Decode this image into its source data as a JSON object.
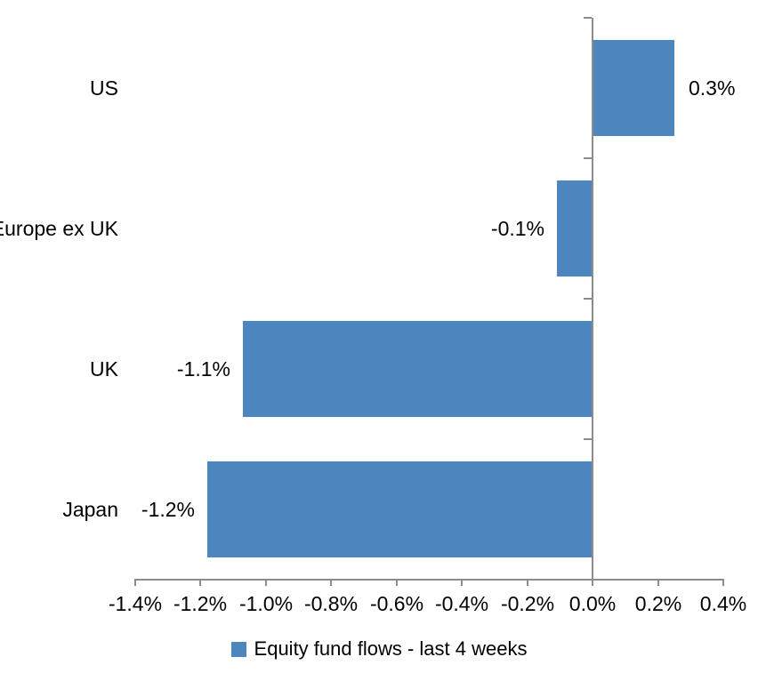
{
  "page": {
    "background": "#FFFFFF"
  },
  "chart_data": {
    "type": "bar",
    "orientation": "horizontal",
    "title": "",
    "xlabel": "",
    "ylabel": "",
    "categories": [
      "US",
      "Europe ex UK",
      "UK",
      "Japan"
    ],
    "values": [
      0.3,
      -0.1,
      -1.1,
      -1.2
    ],
    "data_labels": [
      "0.3%",
      "-0.1%",
      "-1.1%",
      "-1.2%"
    ],
    "plotted_values": [
      0.25,
      -0.11,
      -1.07,
      -1.18
    ],
    "xlim": [
      -1.4,
      0.4
    ],
    "x_tick_step": 0.2,
    "x_tick_labels": [
      "-1.4%",
      "-1.2%",
      "-1.0%",
      "-0.8%",
      "-0.6%",
      "-0.4%",
      "-0.2%",
      "0.0%",
      "0.2%",
      "0.4%"
    ],
    "grid": false,
    "legend": {
      "position": "bottom",
      "label": "Equity fund flows - last 4 weeks"
    },
    "colors": {
      "bar": "#4D86BE",
      "axis": "#8C8C8C",
      "text": "#000000",
      "background": "#FFFFFF"
    }
  }
}
